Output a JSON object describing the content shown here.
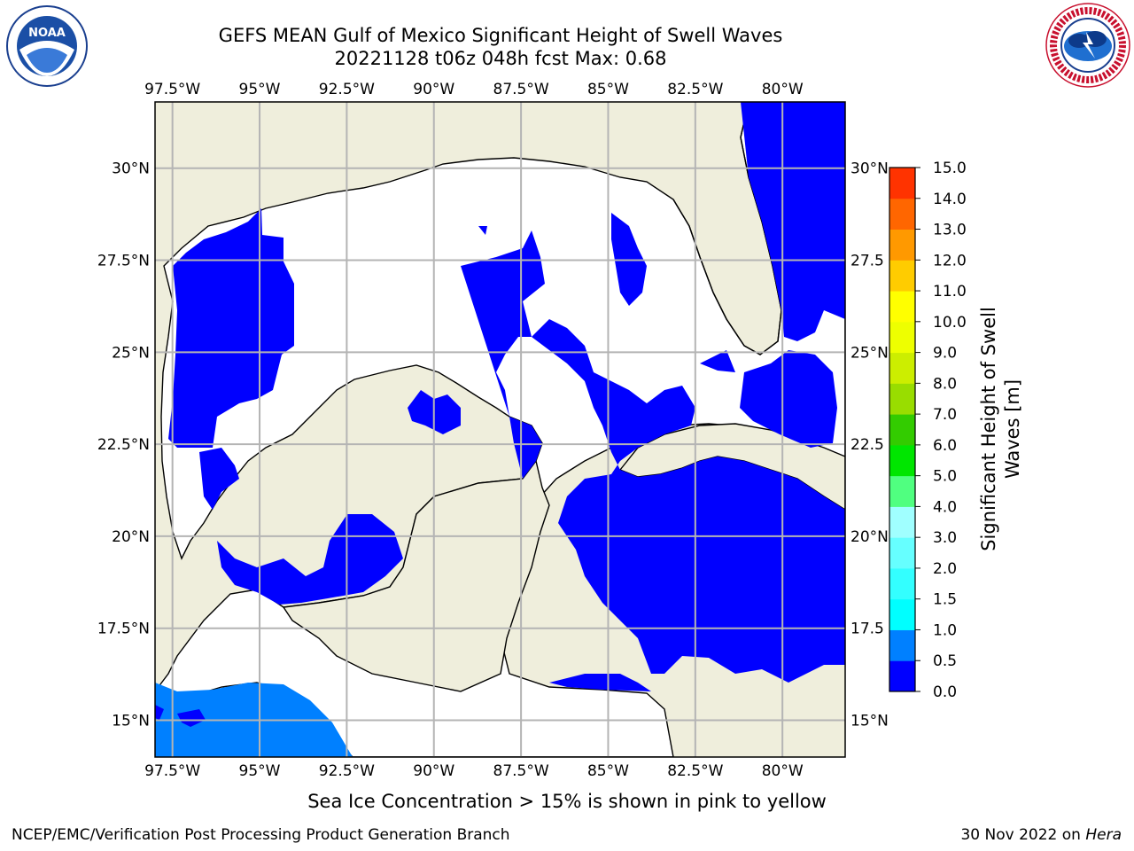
{
  "title": {
    "line1": "GEFS MEAN Gulf of Mexico Significant Height of Swell Waves",
    "line2": "20221128 t06z 048h fcst   Max: 0.68"
  },
  "logos": {
    "left": "NOAA",
    "right": "NATIONAL WEATHER SERVICE"
  },
  "map": {
    "lon_labels": [
      "97.5°W",
      "95°W",
      "92.5°W",
      "90°W",
      "87.5°W",
      "85°W",
      "82.5°W",
      "80°W"
    ],
    "lon_values": [
      -97.5,
      -95,
      -92.5,
      -90,
      -87.5,
      -85,
      -82.5,
      -80
    ],
    "lat_labels_left": [
      "30°N",
      "27.5°N",
      "25°N",
      "22.5°N",
      "20°N",
      "17.5°N",
      "15°N"
    ],
    "lat_labels_right": [
      "30°N",
      "27.5",
      "25°N",
      "22.5",
      "20°N",
      "17.5",
      "15°N"
    ],
    "lat_values": [
      30,
      27.5,
      25,
      22.5,
      20,
      17.5,
      15
    ],
    "lon_range": [
      -98,
      -78.2
    ],
    "lat_range": [
      14,
      31.8
    ],
    "colors": {
      "land": "#efeedc",
      "zero_band": "#0000ff",
      "band_0_5_1_0": "#0080ff",
      "grid": "#b4b4b4"
    }
  },
  "colorbar": {
    "label": "Significant Height of Swell Waves [m]",
    "label_line1": "Significant Height of Swell",
    "label_line2": "Waves [m]",
    "tick_labels": [
      "0.0",
      "0.5",
      "1.0",
      "1.5",
      "2.0",
      "3.0",
      "4.0",
      "5.0",
      "6.0",
      "7.0",
      "8.0",
      "9.0",
      "10.0",
      "11.0",
      "12.0",
      "13.0",
      "14.0",
      "15.0"
    ],
    "colors": [
      "#0000ff",
      "#0080ff",
      "#00ffff",
      "#33ffff",
      "#66ffff",
      "#a0ffff",
      "#50ff80",
      "#00e600",
      "#33cc00",
      "#99dd00",
      "#ccee00",
      "#eeff00",
      "#ffff00",
      "#ffcc00",
      "#ff9900",
      "#ff6600",
      "#ff3300",
      "#ff0000"
    ]
  },
  "ice_note": "Sea Ice Concentration > 15% is shown in pink to yellow",
  "footer": {
    "left": "NCEP/EMC/Verification Post Processing Product Generation Branch",
    "right_date": "30 Nov 2022 on ",
    "right_host": "Hera"
  }
}
